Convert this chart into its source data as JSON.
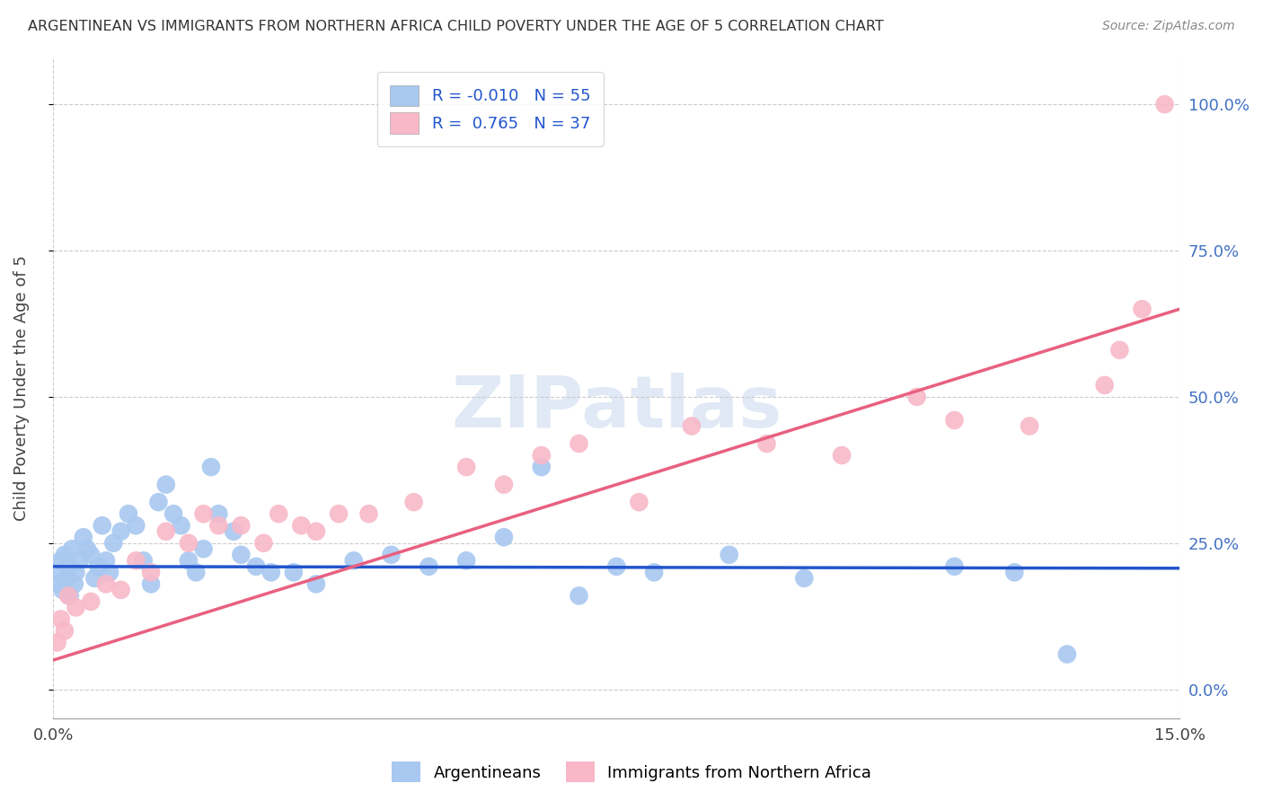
{
  "title": "ARGENTINEAN VS IMMIGRANTS FROM NORTHERN AFRICA CHILD POVERTY UNDER THE AGE OF 5 CORRELATION CHART",
  "source": "Source: ZipAtlas.com",
  "ylabel_label": "Child Poverty Under the Age of 5",
  "xlim": [
    0,
    15
  ],
  "ylim": [
    -5,
    108
  ],
  "legend_labels": [
    "Argentineans",
    "Immigrants from Northern Africa"
  ],
  "R_argentinean": -0.01,
  "N_argentinean": 55,
  "R_northern_africa": 0.765,
  "N_northern_africa": 37,
  "color_blue": "#a8c8f0",
  "color_blue_line": "#2255cc",
  "color_pink": "#f8b8c8",
  "color_pink_line": "#e86080",
  "color_title": "#333333",
  "color_source": "#888888",
  "color_grid": "#cccccc",
  "color_tick_right": "#4472c4",
  "argentinean_x": [
    0.05,
    0.08,
    0.1,
    0.12,
    0.15,
    0.18,
    0.2,
    0.22,
    0.25,
    0.28,
    0.3,
    0.35,
    0.4,
    0.45,
    0.5,
    0.55,
    0.6,
    0.65,
    0.7,
    0.75,
    0.8,
    0.9,
    1.0,
    1.1,
    1.2,
    1.3,
    1.4,
    1.5,
    1.6,
    1.7,
    1.8,
    1.9,
    2.0,
    2.1,
    2.2,
    2.4,
    2.5,
    2.7,
    2.9,
    3.2,
    3.5,
    4.0,
    4.5,
    5.0,
    5.5,
    6.0,
    6.5,
    7.0,
    7.5,
    8.0,
    9.0,
    10.0,
    12.0,
    12.8,
    13.5
  ],
  "argentinean_y": [
    20,
    18,
    22,
    17,
    23,
    19,
    21,
    16,
    24,
    18,
    20,
    22,
    26,
    24,
    23,
    19,
    21,
    28,
    22,
    20,
    25,
    27,
    30,
    28,
    22,
    18,
    32,
    35,
    30,
    28,
    22,
    20,
    24,
    38,
    30,
    27,
    23,
    21,
    20,
    20,
    18,
    22,
    23,
    21,
    22,
    26,
    38,
    16,
    21,
    20,
    23,
    19,
    21,
    20,
    6
  ],
  "northern_africa_x": [
    0.05,
    0.1,
    0.15,
    0.2,
    0.3,
    0.5,
    0.7,
    0.9,
    1.1,
    1.3,
    1.5,
    1.8,
    2.0,
    2.2,
    2.5,
    2.8,
    3.0,
    3.3,
    3.5,
    3.8,
    4.2,
    4.8,
    5.5,
    6.0,
    6.5,
    7.0,
    7.8,
    8.5,
    9.5,
    10.5,
    11.5,
    12.0,
    13.0,
    14.0,
    14.2,
    14.5,
    14.8
  ],
  "northern_africa_y": [
    8,
    12,
    10,
    16,
    14,
    15,
    18,
    17,
    22,
    20,
    27,
    25,
    30,
    28,
    28,
    25,
    30,
    28,
    27,
    30,
    30,
    32,
    38,
    35,
    40,
    42,
    32,
    45,
    42,
    40,
    50,
    46,
    45,
    52,
    58,
    65,
    100
  ],
  "blue_line_y0": 21.0,
  "blue_line_y1": 20.7,
  "pink_line_y0": 5.0,
  "pink_line_y1": 65.0,
  "y_ticks": [
    0,
    25,
    50,
    75,
    100
  ],
  "y_tick_labels": [
    "0.0%",
    "25.0%",
    "50.0%",
    "75.0%",
    "100.0%"
  ],
  "x_ticks": [
    0,
    15
  ],
  "x_tick_labels": [
    "0.0%",
    "15.0%"
  ]
}
